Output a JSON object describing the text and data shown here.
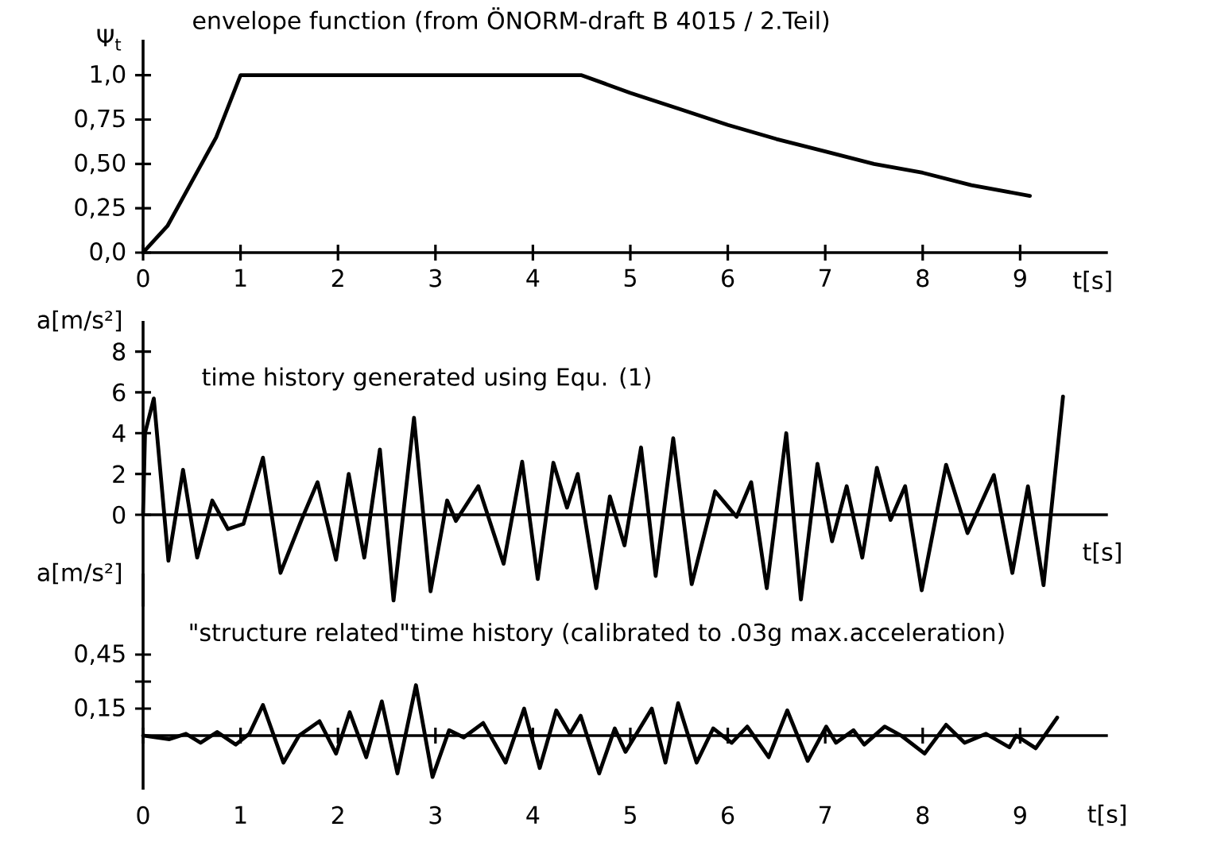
{
  "chart_data": [
    {
      "type": "line",
      "title": "envelope function (from ÖNORM-draft B 4015 / 2.Teil)",
      "ylabel": "Ψ$_{t}$",
      "xlabel": "t[s]",
      "x": [
        0,
        0.25,
        0.5,
        0.75,
        1,
        4.5,
        5,
        5.5,
        6,
        6.5,
        7,
        7.5,
        8,
        8.5,
        9.1
      ],
      "series": [
        {
          "color": "#000000",
          "values": [
            0,
            0.15,
            0.4,
            0.65,
            1,
            1,
            0.9,
            0.81,
            0.72,
            0.64,
            0.57,
            0.5,
            0.45,
            0.38,
            0.32
          ]
        }
      ],
      "xlim": [
        0,
        9.9
      ],
      "ylim": [
        0,
        1.2
      ],
      "xticks": [
        0,
        1,
        2,
        3,
        4,
        5,
        6,
        7,
        8,
        9
      ],
      "yticks": [
        {
          "value": 0,
          "label": "0,0"
        },
        {
          "value": 0.25,
          "label": "0,25"
        },
        {
          "value": 0.5,
          "label": "0,50"
        },
        {
          "value": 0.75,
          "label": "0,75"
        },
        {
          "value": 1,
          "label": "1,0"
        }
      ]
    },
    {
      "type": "line",
      "title": "time history generated using Equ. (1)",
      "ylabel": "a[m/s²]",
      "xlabel": "t[s]",
      "x": [
        0,
        0.02,
        0.11,
        0.26,
        0.41,
        0.555,
        0.71,
        0.87,
        1.03,
        1.23,
        1.41,
        1.63,
        1.79,
        1.98,
        2.11,
        2.27,
        2.43,
        2.57,
        2.78,
        2.95,
        3.12,
        3.21,
        3.44,
        3.7,
        3.89,
        4.05,
        4.21,
        4.35,
        4.46,
        4.65,
        4.79,
        4.94,
        5.11,
        5.26,
        5.44,
        5.63,
        5.87,
        6.09,
        6.24,
        6.4,
        6.6,
        6.75,
        6.92,
        7.07,
        7.22,
        7.38,
        7.53,
        7.67,
        7.82,
        7.99,
        8.24,
        8.46,
        8.73,
        8.92,
        9.08,
        9.24,
        9.44
      ],
      "series": [
        {
          "color": "#000000",
          "values": [
            0,
            4,
            5.7,
            -2.25,
            2.2,
            -2.1,
            0.7,
            -0.7,
            -0.45,
            2.8,
            -2.85,
            -0.2,
            1.6,
            -2.2,
            2.0,
            -2.1,
            3.2,
            -4.2,
            4.75,
            -3.75,
            0.7,
            -0.3,
            1.4,
            -2.4,
            2.6,
            -3.15,
            2.55,
            0.35,
            2.0,
            -3.6,
            0.9,
            -1.5,
            3.3,
            -3.0,
            3.75,
            -3.4,
            1.15,
            -0.1,
            1.6,
            -3.6,
            4.0,
            -4.15,
            2.5,
            -1.3,
            1.4,
            -2.1,
            2.3,
            -0.25,
            1.4,
            -3.7,
            2.45,
            -0.9,
            1.95,
            -2.85,
            1.4,
            -3.45,
            5.8
          ]
        }
      ],
      "xlim": [
        0,
        9.9
      ],
      "ylim": [
        -4.5,
        9.5
      ],
      "yticks": [
        0,
        2,
        4,
        6,
        8
      ],
      "tick_labels": "y"
    },
    {
      "type": "line",
      "title": "\"structure related\"time history (calibrated to .03g max.acceleration)",
      "ylabel": "a[m/s²]",
      "xlabel": "t[s]",
      "x": [
        0,
        0.27,
        0.44,
        0.59,
        0.76,
        0.95,
        1.09,
        1.23,
        1.44,
        1.6,
        1.81,
        1.98,
        2.12,
        2.29,
        2.45,
        2.61,
        2.8,
        2.97,
        3.14,
        3.29,
        3.49,
        3.72,
        3.91,
        4.07,
        4.24,
        4.38,
        4.49,
        4.68,
        4.84,
        4.95,
        5.22,
        5.36,
        5.49,
        5.68,
        5.85,
        6.04,
        6.2,
        6.42,
        6.61,
        6.82,
        7.01,
        7.11,
        7.29,
        7.4,
        7.61,
        7.78,
        8.02,
        8.24,
        8.43,
        8.65,
        8.89,
        8.96,
        9.16,
        9.38
      ],
      "series": [
        {
          "color": "#000000",
          "values": [
            0,
            -0.02,
            0.01,
            -0.04,
            0.02,
            -0.05,
            0.01,
            0.17,
            -0.15,
            0,
            0.08,
            -0.1,
            0.13,
            -0.12,
            0.19,
            -0.21,
            0.28,
            -0.23,
            0.03,
            -0.01,
            0.07,
            -0.15,
            0.15,
            -0.18,
            0.14,
            0.01,
            0.11,
            -0.21,
            0.04,
            -0.09,
            0.15,
            -0.15,
            0.18,
            -0.15,
            0.04,
            -0.04,
            0.05,
            -0.12,
            0.14,
            -0.14,
            0.05,
            -0.04,
            0.03,
            -0.05,
            0.05,
            0,
            -0.1,
            0.06,
            -0.04,
            0.01,
            -0.065,
            0,
            -0.07,
            0.1
          ]
        }
      ],
      "xlim": [
        0,
        9.9
      ],
      "ylim": [
        -0.3,
        0.9
      ],
      "xticks": [
        0,
        1,
        2,
        3,
        4,
        5,
        6,
        7,
        8,
        9
      ],
      "yticks": [
        {
          "value": 0.15,
          "label": "0,15"
        },
        {
          "value": 0.3,
          "label": null
        },
        {
          "value": 0.45,
          "label": "0,45"
        }
      ]
    }
  ]
}
